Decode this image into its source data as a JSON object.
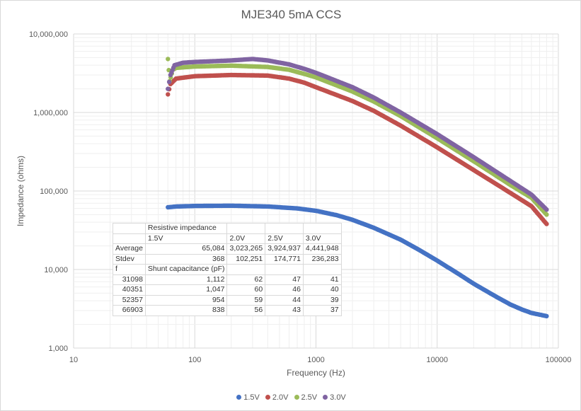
{
  "chart_data": {
    "type": "scatter",
    "title": "MJE340 5mA CCS",
    "xlabel": "Frequency (Hz)",
    "ylabel": "Impedance (ohms)",
    "xscale": "log",
    "yscale": "log",
    "xlim": [
      10,
      100000
    ],
    "ylim": [
      1000,
      10000000
    ],
    "x_ticks": [
      "10",
      "100",
      "1000",
      "10000",
      "100000"
    ],
    "y_ticks": [
      "1,000",
      "10,000",
      "100,000",
      "1,000,000",
      "10,000,000"
    ],
    "grid": true,
    "legend_position": "bottom",
    "series": [
      {
        "name": "1.5V",
        "color": "#4472c4",
        "points": [
          [
            60,
            62000
          ],
          [
            70,
            63500
          ],
          [
            100,
            64500
          ],
          [
            200,
            65000
          ],
          [
            400,
            63500
          ],
          [
            700,
            60000
          ],
          [
            1000,
            56000
          ],
          [
            1500,
            49000
          ],
          [
            2000,
            43000
          ],
          [
            3000,
            34000
          ],
          [
            5000,
            24000
          ],
          [
            7000,
            18000
          ],
          [
            10000,
            13000
          ],
          [
            15000,
            8800
          ],
          [
            20000,
            6600
          ],
          [
            30000,
            4600
          ],
          [
            40000,
            3600
          ],
          [
            50000,
            3100
          ],
          [
            60000,
            2800
          ],
          [
            80000,
            2550
          ]
        ]
      },
      {
        "name": "2.0V",
        "color": "#c0504d",
        "points": [
          [
            60,
            1700000
          ],
          [
            63,
            2300000
          ],
          [
            70,
            2700000
          ],
          [
            100,
            2900000
          ],
          [
            200,
            3000000
          ],
          [
            400,
            2950000
          ],
          [
            600,
            2700000
          ],
          [
            800,
            2400000
          ],
          [
            1000,
            2100000
          ],
          [
            2000,
            1400000
          ],
          [
            3000,
            1050000
          ],
          [
            5000,
            680000
          ],
          [
            10000,
            360000
          ],
          [
            20000,
            185000
          ],
          [
            40000,
            95000
          ],
          [
            60000,
            64000
          ],
          [
            80000,
            38000
          ]
        ]
      },
      {
        "name": "2.5V",
        "color": "#9bbb59",
        "points": [
          [
            60,
            4800000
          ],
          [
            62,
            2500000
          ],
          [
            66,
            3500000
          ],
          [
            70,
            3700000
          ],
          [
            100,
            3850000
          ],
          [
            200,
            3950000
          ],
          [
            400,
            3800000
          ],
          [
            600,
            3500000
          ],
          [
            800,
            3100000
          ],
          [
            1000,
            2800000
          ],
          [
            2000,
            1850000
          ],
          [
            3000,
            1380000
          ],
          [
            5000,
            900000
          ],
          [
            10000,
            470000
          ],
          [
            20000,
            240000
          ],
          [
            40000,
            120000
          ],
          [
            60000,
            82000
          ],
          [
            80000,
            50000
          ]
        ]
      },
      {
        "name": "3.0V",
        "color": "#8064a2",
        "points": [
          [
            60,
            2000000
          ],
          [
            63,
            3000000
          ],
          [
            68,
            4000000
          ],
          [
            80,
            4300000
          ],
          [
            100,
            4400000
          ],
          [
            200,
            4600000
          ],
          [
            300,
            4800000
          ],
          [
            400,
            4600000
          ],
          [
            600,
            4100000
          ],
          [
            800,
            3600000
          ],
          [
            1000,
            3200000
          ],
          [
            2000,
            2100000
          ],
          [
            3000,
            1550000
          ],
          [
            5000,
            1000000
          ],
          [
            10000,
            530000
          ],
          [
            20000,
            270000
          ],
          [
            40000,
            135000
          ],
          [
            60000,
            90000
          ],
          [
            80000,
            58000
          ]
        ]
      }
    ],
    "table": {
      "rows": [
        [
          "",
          "Resistive impedance",
          "",
          "",
          ""
        ],
        [
          "",
          "1.5V",
          "2.0V",
          "2.5V",
          "3.0V"
        ],
        [
          "Average",
          "65,084",
          "3,023,265",
          "3,924,937",
          "4,441,948"
        ],
        [
          "Stdev",
          "368",
          "102,251",
          "174,771",
          "236,283"
        ],
        [
          "f",
          "Shunt capacitance (pF)",
          "",
          "",
          ""
        ],
        [
          "31098",
          "1,112",
          "62",
          "47",
          "41"
        ],
        [
          "40351",
          "1,047",
          "60",
          "46",
          "40"
        ],
        [
          "52357",
          "954",
          "59",
          "44",
          "39"
        ],
        [
          "66903",
          "838",
          "56",
          "43",
          "37"
        ]
      ]
    }
  }
}
